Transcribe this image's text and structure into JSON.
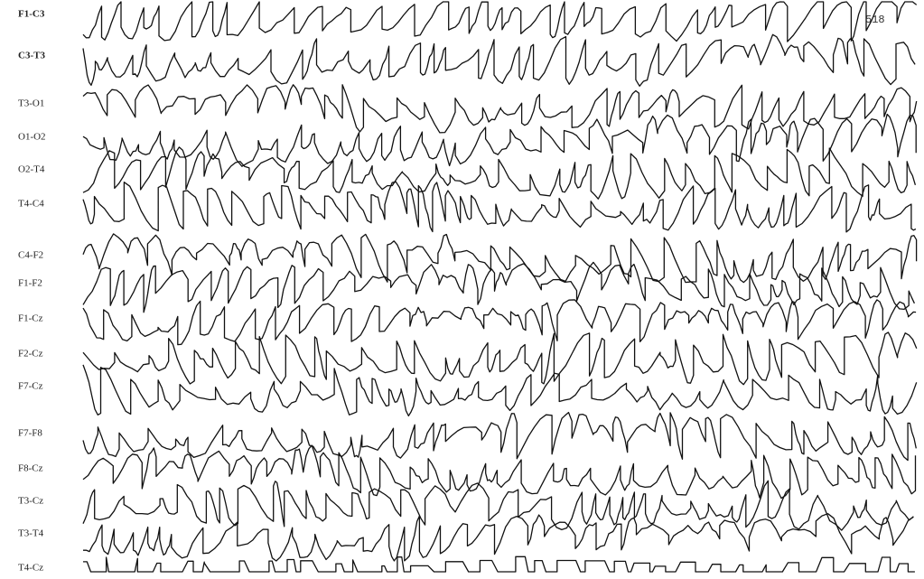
{
  "page_number": "518",
  "channels": [
    "F1-C3",
    "C3-T3",
    "T3-O1",
    "O1-O2",
    "O2-T4",
    "T4-C4",
    "C4-F2",
    "F1-F2",
    "F1-Cz",
    "F2-Cz",
    "F7-Cz",
    "F7-F8",
    "F8-Cz",
    "T3-Cz",
    "T3-T4",
    "T4-Cz"
  ]
}
